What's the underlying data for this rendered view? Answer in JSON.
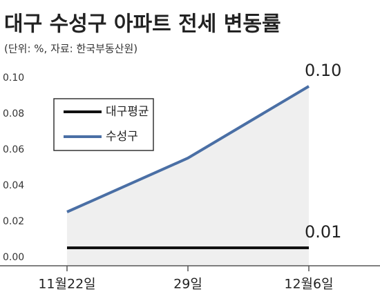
{
  "chart_data": {
    "type": "line",
    "title": "대구 수성구 아파트 전세 변동률",
    "subtitle": "(단위: %, 자료: 한국부동산원)",
    "categories": [
      "11월22일",
      "29일",
      "12월6일"
    ],
    "series": [
      {
        "name": "대구평균",
        "color": "#111111",
        "values": [
          0.01,
          0.01,
          0.01
        ],
        "value_labels": [
          null,
          null,
          "0.01"
        ]
      },
      {
        "name": "수성구",
        "color": "#4a6fa5",
        "values": [
          0.03,
          0.06,
          0.1
        ],
        "value_labels": [
          null,
          null,
          "0.10"
        ]
      }
    ],
    "ylim": [
      0,
      0.1
    ],
    "yticks": [
      {
        "value": 0,
        "label": "0.00"
      },
      0.02,
      0.04,
      0.06,
      0.08,
      {
        "value": 0.1,
        "label": "0.10"
      }
    ],
    "legend": "upper left"
  }
}
